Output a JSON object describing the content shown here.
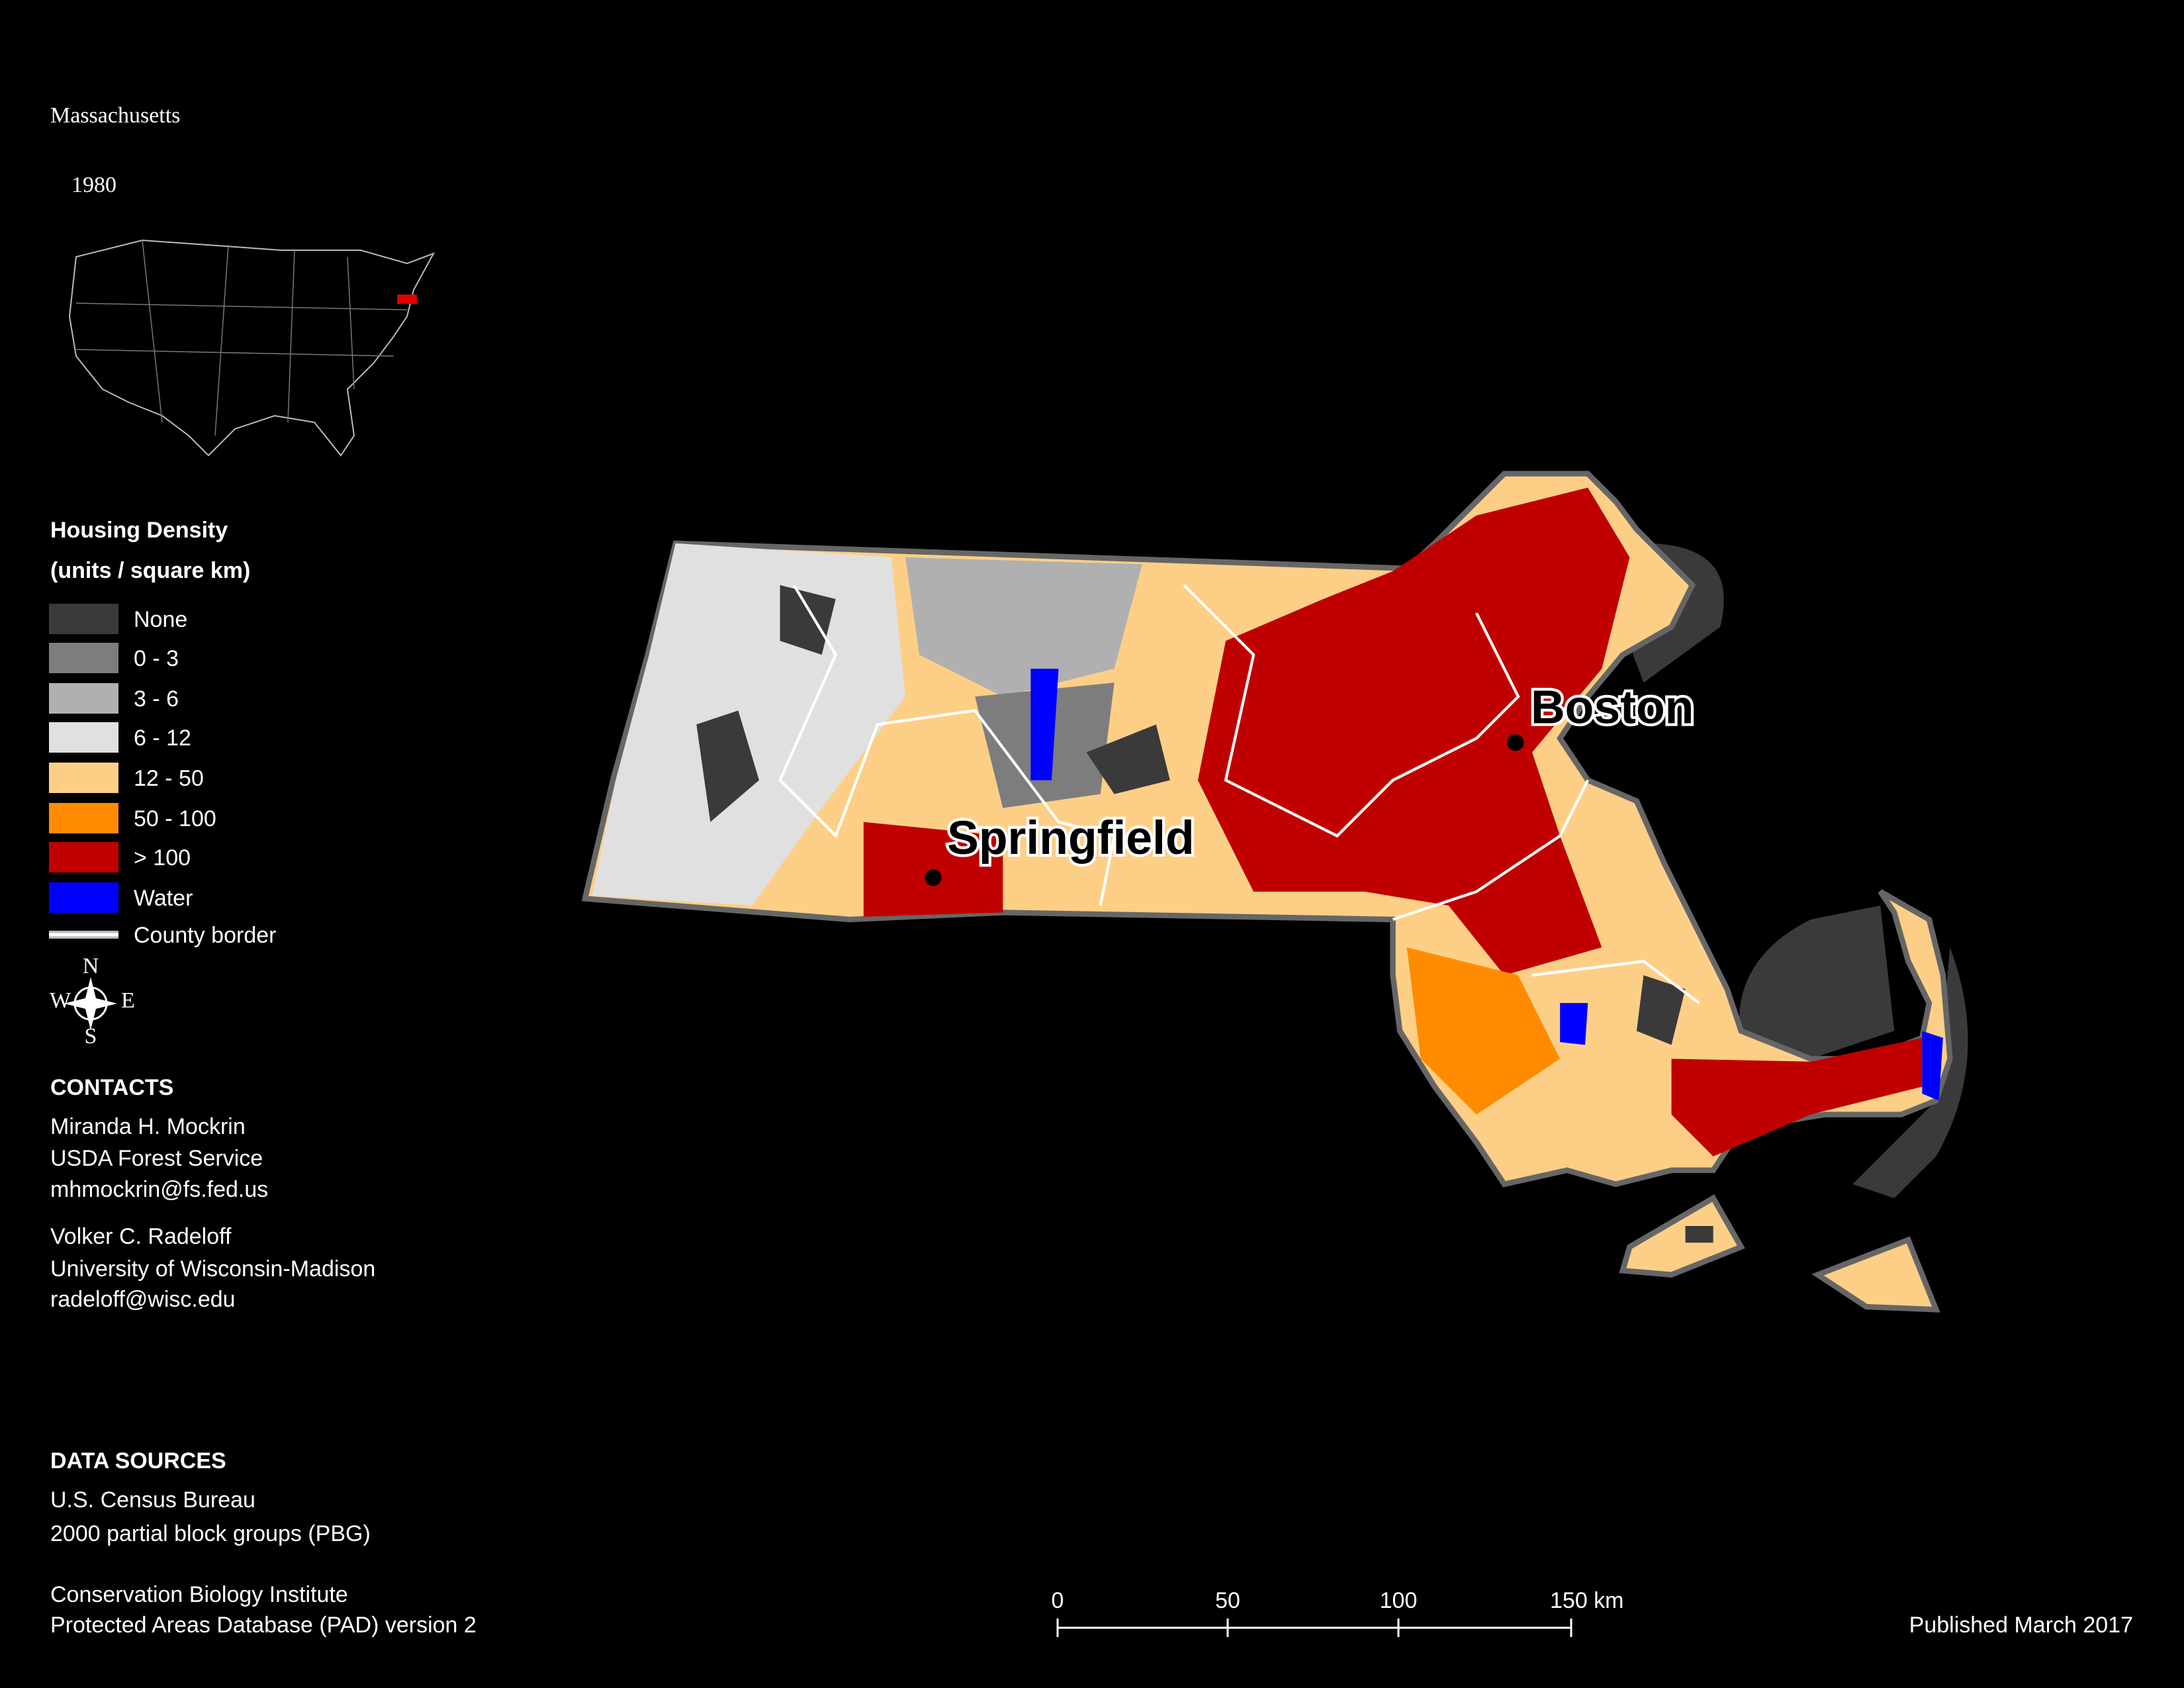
{
  "title": "Massachusetts",
  "subtitle": "1980",
  "legend": {
    "title": "Housing Density",
    "subtitle": "(units / square km)",
    "items": [
      {
        "label": "None",
        "color": "#3a3a3a"
      },
      {
        "label": "0 - 3",
        "color": "#7d7d7d"
      },
      {
        "label": "3 - 6",
        "color": "#b0b0b0"
      },
      {
        "label": "6 - 12",
        "color": "#e0e0e0"
      },
      {
        "label": "12 - 50",
        "color": "#fdcf86"
      },
      {
        "label": "50 - 100",
        "color": "#ff8c00"
      },
      {
        "label": "> 100",
        "color": "#c00000"
      },
      {
        "label": "Water",
        "color": "#0000ff"
      }
    ],
    "county_border": "County border"
  },
  "compass": {
    "n": "N",
    "s": "S",
    "e": "E",
    "w": "W"
  },
  "cities": [
    {
      "label": "Boston"
    },
    {
      "label": "Springfield"
    }
  ],
  "contacts": {
    "title": "CONTACTS",
    "people": [
      [
        "Miranda H. Mockrin",
        "USDA Forest Service",
        "mhmockrin@fs.fed.us"
      ],
      [
        "Volker C. Radeloff",
        "University of Wisconsin-Madison",
        "radeloff@wisc.edu"
      ]
    ]
  },
  "data_sources": {
    "title": "DATA SOURCES",
    "groups": [
      [
        "U.S. Census Bureau",
        "2000 partial block groups (PBG)"
      ],
      [
        "Conservation Biology Institute",
        "Protected Areas Database (PAD) version 2"
      ]
    ]
  },
  "scale_bar": [
    "0",
    "50",
    "100",
    "150 km"
  ],
  "published": "Published March 2017"
}
